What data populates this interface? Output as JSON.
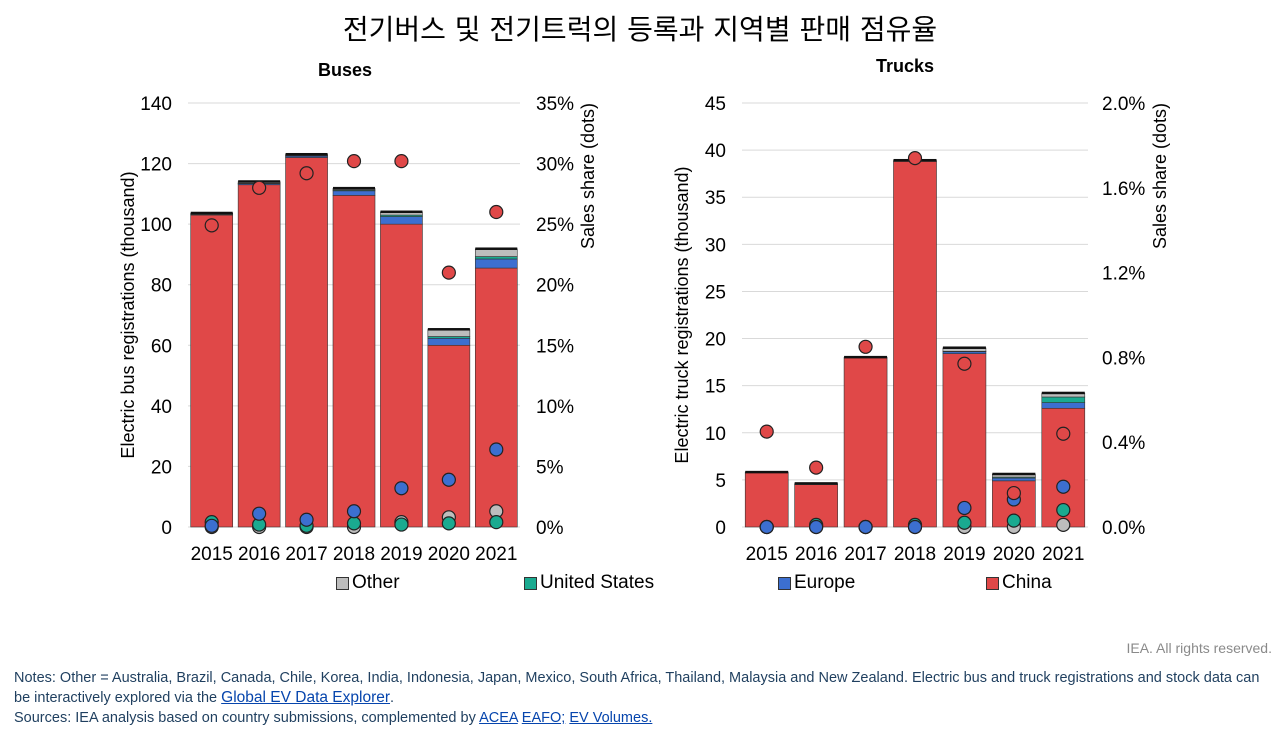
{
  "main_title": "전기버스 및 전기트럭의 등록과 지역별 판매 점유율",
  "colors": {
    "China": "#e04848",
    "Europe": "#3c6fd0",
    "United States": "#1aaa90",
    "Other": "#bdbdbd",
    "topline": "#111111"
  },
  "legend": {
    "other": "Other",
    "us": "United States",
    "europe": "Europe",
    "china": "China"
  },
  "chart_data": [
    {
      "type": "bar",
      "title": "Buses",
      "ylabel": "Electric bus registrations (thousand)",
      "y2label": "Sales share (dots)",
      "categories": [
        "2015",
        "2016",
        "2017",
        "2018",
        "2019",
        "2020",
        "2021"
      ],
      "ylim": [
        0,
        140
      ],
      "yticks": [
        "0",
        "20",
        "40",
        "60",
        "80",
        "100",
        "120",
        "140"
      ],
      "y2lim": [
        0,
        35
      ],
      "y2ticks": [
        "0%",
        "5%",
        "10%",
        "15%",
        "20%",
        "25%",
        "30%",
        "35%"
      ],
      "stacked": true,
      "series": [
        {
          "name": "China",
          "values": [
            103,
            113,
            122,
            109.5,
            100,
            60,
            85.5
          ]
        },
        {
          "name": "Europe",
          "values": [
            0.2,
            0.4,
            0.5,
            1.5,
            2.5,
            2.3,
            3
          ]
        },
        {
          "name": "United States",
          "values": [
            0.1,
            0.1,
            0.1,
            0.3,
            0.5,
            0.6,
            0.8
          ]
        },
        {
          "name": "Other",
          "values": [
            0.3,
            0.5,
            0.4,
            0.5,
            1.0,
            2.3,
            2.5
          ]
        }
      ],
      "share_series": [
        {
          "name": "China",
          "values": [
            24.9,
            28,
            29.2,
            30.2,
            30.2,
            21,
            26
          ]
        },
        {
          "name": "Europe",
          "values": [
            0.1,
            1.1,
            0.6,
            1.3,
            3.2,
            3.9,
            6.4
          ]
        },
        {
          "name": "United States",
          "values": [
            0.4,
            0.2,
            0.1,
            0.3,
            0.2,
            0.3,
            0.4
          ]
        },
        {
          "name": "Other",
          "values": [
            0,
            0,
            0,
            0,
            0.4,
            0.8,
            1.3
          ]
        }
      ]
    },
    {
      "type": "bar",
      "title": "Trucks",
      "ylabel": "Electric truck registrations (thousand)",
      "y2label": "Sales share (dots)",
      "categories": [
        "2015",
        "2016",
        "2017",
        "2018",
        "2019",
        "2020",
        "2021"
      ],
      "ylim": [
        0,
        45
      ],
      "yticks": [
        "0",
        "5",
        "10",
        "15",
        "20",
        "25",
        "30",
        "35",
        "40",
        "45"
      ],
      "y2lim": [
        0,
        2.0
      ],
      "y2ticks": [
        "0.0%",
        "0.4%",
        "0.8%",
        "1.2%",
        "1.6%",
        "2.0%"
      ],
      "stacked": true,
      "series": [
        {
          "name": "China",
          "values": [
            5.8,
            4.5,
            18,
            38.8,
            18.4,
            4.9,
            12.6
          ]
        },
        {
          "name": "Europe",
          "values": [
            0,
            0,
            0,
            0,
            0.2,
            0.3,
            0.6
          ]
        },
        {
          "name": "United States",
          "values": [
            0,
            0,
            0,
            0,
            0.05,
            0.1,
            0.6
          ]
        },
        {
          "name": "Other",
          "values": [
            0,
            0.1,
            0,
            0.1,
            0.35,
            0.3,
            0.4
          ]
        }
      ],
      "share_series": [
        {
          "name": "China",
          "values": [
            0.45,
            0.28,
            0.85,
            1.74,
            0.77,
            0.16,
            0.44
          ]
        },
        {
          "name": "Europe",
          "values": [
            0,
            0,
            0,
            0,
            0.09,
            0.13,
            0.19
          ]
        },
        {
          "name": "United States",
          "values": [
            0,
            0.01,
            0,
            0.01,
            0.02,
            0.03,
            0.08
          ]
        },
        {
          "name": "Other",
          "values": [
            0,
            0,
            0,
            0,
            0,
            0,
            0.01
          ]
        }
      ]
    }
  ],
  "footer": {
    "rights": "IEA. All rights reserved.",
    "notes_text": "Notes: Other = Australia, Brazil, Canada, Chile, Korea, India, Indonesia, Japan, Mexico, South Africa, Thailand, Malaysia and New Zealand. Electric bus and truck registrations and stock data can be interactively explored via the ",
    "notes_link": "Global EV Data Explorer",
    "notes_end": ".",
    "sources_text": "Sources: IEA analysis based on country submissions, complemented by ",
    "source_links": [
      "ACEA",
      "EAFO;",
      "EV Volumes."
    ],
    "source_sep": "; "
  }
}
